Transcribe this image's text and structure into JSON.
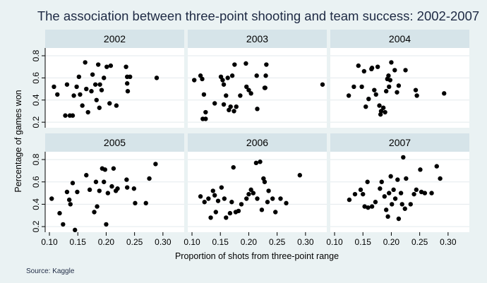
{
  "colors": {
    "background": "#eaf2f3",
    "panel": "#ffffff",
    "strip": "#d6e4e9",
    "grid": "#e3eaed",
    "point": "#000000",
    "title": "#1e2a44"
  },
  "chart_data": {
    "type": "scatter",
    "title": "The association between three-point shooting and team success: 2002-2007",
    "xlabel": "Proportion of shots from three-point range",
    "ylabel": "Percentage of games won",
    "source": "Source: Kaggle",
    "xlim": [
      0.095,
      0.335
    ],
    "ylim": [
      0.15,
      0.87
    ],
    "xticks": [
      0.1,
      0.15,
      0.2,
      0.25,
      0.3
    ],
    "xtick_labels": [
      "0.10",
      "0.15",
      "0.20",
      "0.25",
      "0.30"
    ],
    "yticks": [
      0.2,
      0.4,
      0.6,
      0.8
    ],
    "ytick_labels": [
      "0.2",
      "0.4",
      "0.6",
      "0.8"
    ],
    "grid": true,
    "panels": [
      {
        "label": "2002",
        "x": [
          0.108,
          0.114,
          0.128,
          0.136,
          0.143,
          0.131,
          0.141,
          0.148,
          0.152,
          0.154,
          0.158,
          0.163,
          0.165,
          0.168,
          0.174,
          0.176,
          0.181,
          0.183,
          0.186,
          0.188,
          0.189,
          0.192,
          0.196,
          0.201,
          0.206,
          0.208,
          0.218,
          0.235,
          0.237,
          0.237,
          0.238,
          0.242,
          0.289
        ],
        "y": [
          0.52,
          0.45,
          0.26,
          0.26,
          0.44,
          0.54,
          0.26,
          0.52,
          0.61,
          0.45,
          0.35,
          0.74,
          0.5,
          0.29,
          0.48,
          0.63,
          0.54,
          0.4,
          0.72,
          0.33,
          0.54,
          0.49,
          0.6,
          0.7,
          0.37,
          0.71,
          0.35,
          0.7,
          0.61,
          0.55,
          0.48,
          0.61,
          0.6
        ]
      },
      {
        "label": "2003",
        "x": [
          0.104,
          0.115,
          0.118,
          0.119,
          0.121,
          0.124,
          0.124,
          0.14,
          0.151,
          0.154,
          0.156,
          0.156,
          0.16,
          0.163,
          0.165,
          0.168,
          0.171,
          0.174,
          0.175,
          0.178,
          0.185,
          0.195,
          0.196,
          0.2,
          0.204,
          0.214,
          0.215,
          0.228,
          0.229,
          0.23,
          0.231,
          0.33
        ],
        "y": [
          0.58,
          0.62,
          0.59,
          0.23,
          0.45,
          0.29,
          0.23,
          0.37,
          0.61,
          0.58,
          0.54,
          0.36,
          0.44,
          0.6,
          0.31,
          0.34,
          0.62,
          0.3,
          0.72,
          0.34,
          0.44,
          0.73,
          0.52,
          0.49,
          0.46,
          0.62,
          0.32,
          0.51,
          0.51,
          0.62,
          0.72,
          0.54
        ]
      },
      {
        "label": "2004",
        "x": [
          0.125,
          0.134,
          0.142,
          0.148,
          0.152,
          0.155,
          0.16,
          0.165,
          0.166,
          0.17,
          0.173,
          0.176,
          0.179,
          0.181,
          0.182,
          0.186,
          0.189,
          0.191,
          0.193,
          0.195,
          0.196,
          0.198,
          0.2,
          0.206,
          0.21,
          0.213,
          0.225,
          0.243,
          0.245,
          0.293
        ],
        "y": [
          0.44,
          0.52,
          0.71,
          0.52,
          0.66,
          0.34,
          0.41,
          0.68,
          0.69,
          0.49,
          0.45,
          0.7,
          0.35,
          0.27,
          0.3,
          0.33,
          0.29,
          0.48,
          0.59,
          0.62,
          0.52,
          0.58,
          0.74,
          0.67,
          0.47,
          0.53,
          0.67,
          0.49,
          0.44,
          0.46
        ]
      },
      {
        "label": "2005",
        "x": [
          0.104,
          0.118,
          0.124,
          0.131,
          0.135,
          0.137,
          0.141,
          0.145,
          0.149,
          0.165,
          0.171,
          0.179,
          0.182,
          0.184,
          0.188,
          0.193,
          0.196,
          0.198,
          0.2,
          0.203,
          0.21,
          0.213,
          0.217,
          0.22,
          0.236,
          0.237,
          0.249,
          0.251,
          0.27,
          0.276,
          0.287
        ],
        "y": [
          0.45,
          0.32,
          0.22,
          0.51,
          0.44,
          0.4,
          0.59,
          0.17,
          0.51,
          0.66,
          0.53,
          0.33,
          0.6,
          0.38,
          0.52,
          0.72,
          0.6,
          0.71,
          0.22,
          0.5,
          0.56,
          0.72,
          0.52,
          0.54,
          0.62,
          0.55,
          0.54,
          0.41,
          0.41,
          0.63,
          0.76
        ]
      },
      {
        "label": "2006",
        "x": [
          0.115,
          0.122,
          0.129,
          0.133,
          0.137,
          0.14,
          0.142,
          0.146,
          0.152,
          0.157,
          0.16,
          0.167,
          0.17,
          0.173,
          0.177,
          0.182,
          0.187,
          0.196,
          0.2,
          0.204,
          0.208,
          0.213,
          0.215,
          0.22,
          0.223,
          0.226,
          0.228,
          0.233,
          0.235,
          0.242,
          0.247,
          0.256,
          0.266,
          0.29
        ],
        "y": [
          0.47,
          0.42,
          0.45,
          0.28,
          0.52,
          0.48,
          0.33,
          0.43,
          0.55,
          0.45,
          0.28,
          0.32,
          0.42,
          0.73,
          0.33,
          0.34,
          0.4,
          0.45,
          0.49,
          0.53,
          0.5,
          0.77,
          0.45,
          0.78,
          0.35,
          0.63,
          0.6,
          0.42,
          0.52,
          0.45,
          0.33,
          0.45,
          0.41,
          0.66
        ]
      },
      {
        "label": "2007",
        "x": [
          0.126,
          0.136,
          0.146,
          0.15,
          0.153,
          0.158,
          0.159,
          0.166,
          0.172,
          0.18,
          0.183,
          0.188,
          0.191,
          0.194,
          0.196,
          0.199,
          0.201,
          0.204,
          0.207,
          0.211,
          0.213,
          0.217,
          0.219,
          0.221,
          0.224,
          0.226,
          0.234,
          0.24,
          0.244,
          0.251,
          0.253,
          0.259,
          0.271,
          0.28,
          0.286
        ],
        "y": [
          0.44,
          0.49,
          0.53,
          0.49,
          0.38,
          0.6,
          0.37,
          0.38,
          0.42,
          0.54,
          0.6,
          0.47,
          0.35,
          0.29,
          0.5,
          0.65,
          0.4,
          0.53,
          0.45,
          0.62,
          0.27,
          0.5,
          0.4,
          0.82,
          0.36,
          0.63,
          0.4,
          0.49,
          0.53,
          0.71,
          0.51,
          0.5,
          0.5,
          0.74,
          0.63
        ]
      }
    ]
  }
}
